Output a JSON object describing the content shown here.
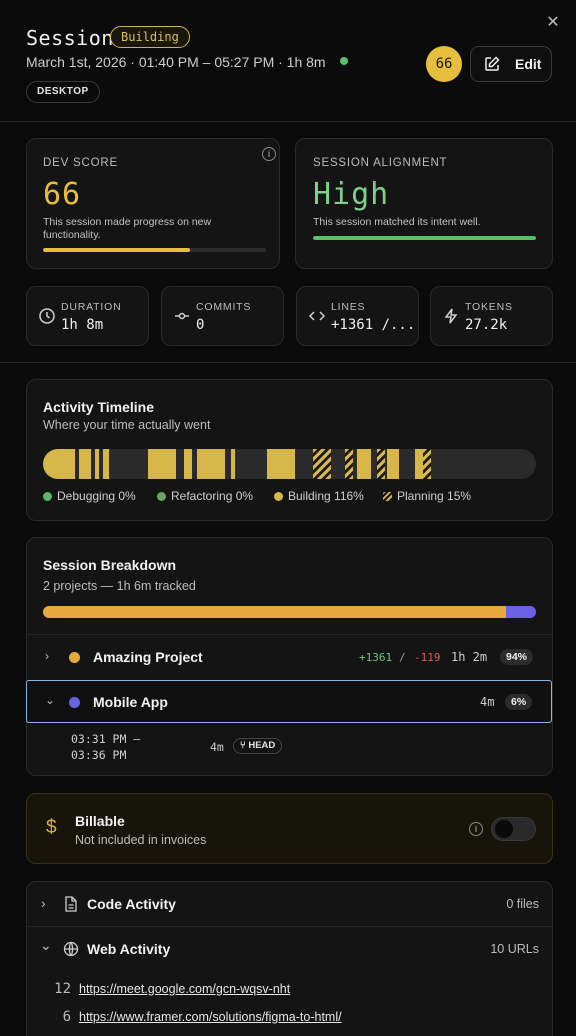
{
  "header": {
    "title": "Session",
    "status": "Building",
    "meta": "March 1st, 2026 · 01:40 PM – 05:27 PM · 1h 8m",
    "device": "DESKTOP",
    "score": "66",
    "edit_label": "Edit",
    "close_glyph": "✕"
  },
  "dev_score": {
    "caption": "DEV SCORE",
    "value": "66",
    "description": "This session made progress on new functionality.",
    "progress": 0.66,
    "color": "#e7bd3e"
  },
  "alignment": {
    "caption": "SESSION ALIGNMENT",
    "value": "High",
    "description": "This session matched its intent well.",
    "progress": 1.0,
    "color": "#57c26a"
  },
  "stats": [
    {
      "icon": "clock-icon",
      "caption": "DURATION",
      "value": "1h 8m"
    },
    {
      "icon": "commit-icon",
      "caption": "COMMITS",
      "value": "0"
    },
    {
      "icon": "code-icon",
      "caption": "LINES",
      "value": "+1361 /..."
    },
    {
      "icon": "bolt-icon",
      "caption": "TOKENS",
      "value": "27.2k"
    }
  ],
  "timeline": {
    "title": "Activity Timeline",
    "subtitle": "Where your time actually went",
    "legend": [
      {
        "label": "Debugging 0%",
        "color": "#57c26a"
      },
      {
        "label": "Refactoring 0%",
        "color": "#6aa35f"
      },
      {
        "label": "Building 116%",
        "color": "#d7b64a"
      },
      {
        "label": "Planning 15%",
        "color": "#d7b64a"
      }
    ]
  },
  "breakdown": {
    "title": "Session Breakdown",
    "subtitle": "2 projects — 1h 6m tracked",
    "projects": [
      {
        "name": "Amazing Project",
        "color": "#e7a83e",
        "added": "+1361",
        "separator": "/",
        "removed": "-119",
        "time": "1h 2m",
        "percent": "94%",
        "share": 0.94
      },
      {
        "name": "Mobile App",
        "color": "#6b63e6",
        "time": "4m",
        "percent": "6%",
        "share": 0.06
      }
    ],
    "session_entry": {
      "range_start": "03:31 PM –",
      "range_end": "03:36 PM",
      "duration": "4m",
      "branch": "HEAD"
    }
  },
  "billable": {
    "title": "Billable",
    "subtitle": "Not included in invoices",
    "enabled": false
  },
  "code_activity": {
    "title": "Code Activity",
    "count": "0 files"
  },
  "web_activity": {
    "title": "Web Activity",
    "count": "10 URLs",
    "urls": [
      {
        "count": "12",
        "url": "https://meet.google.com/gcn-wqsv-nht"
      },
      {
        "count": "6",
        "url": "https://www.framer.com/solutions/figma-to-html/"
      }
    ]
  }
}
